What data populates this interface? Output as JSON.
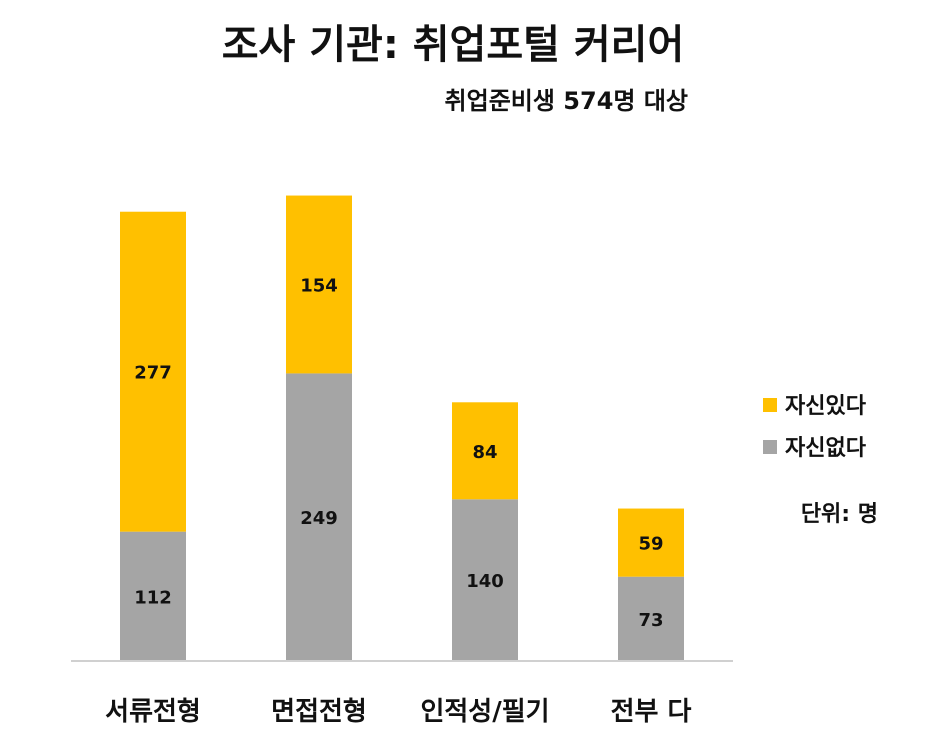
{
  "chart_data": {
    "type": "bar",
    "stacked": true,
    "title": "조사 기관: 취업포털 커리어",
    "subtitle": "취업준비생 574명 대상",
    "categories": [
      "서류전형",
      "면접전형",
      "인적성/필기",
      "전부 다"
    ],
    "series": [
      {
        "name": "자신없다",
        "values": [
          112,
          249,
          140,
          73
        ],
        "color": "#A5A5A5"
      },
      {
        "name": "자신있다",
        "values": [
          277,
          154,
          84,
          59
        ],
        "color": "#FFC000"
      }
    ],
    "legend_position": "right",
    "legend_order": [
      "자신있다",
      "자신없다"
    ],
    "unit_note": "단위: 명",
    "grid": false,
    "ylim": [
      0,
      413
    ]
  }
}
